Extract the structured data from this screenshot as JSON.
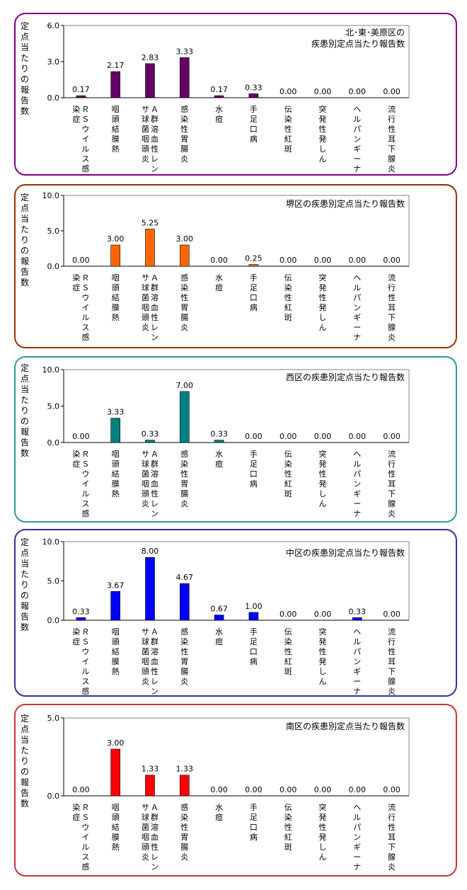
{
  "chart_data": [
    {
      "type": "bar",
      "title": "北･東･美原区の\n疾患別定点当たり報告数",
      "ylabel": "定点当たりの報告数",
      "ylim": [
        0,
        6.0
      ],
      "yticks": [
        "0.0",
        "3.0",
        "6.0"
      ],
      "yticks_values": [
        0,
        3,
        6
      ],
      "color": "#660066",
      "border_color": "#800080",
      "categories": [
        "ＲＳウイルス感染症",
        "咽頭結膜熱",
        "Ａ群溶血性レンサ球菌咽頭炎",
        "感染性胃腸炎",
        "水痘",
        "手足口病",
        "伝染性紅斑",
        "突発性発しん",
        "ヘルパンギーナ",
        "流行性耳下腺炎"
      ],
      "values": [
        0.17,
        2.17,
        2.83,
        3.33,
        0.17,
        0.33,
        0.0,
        0.0,
        0.0,
        0.0
      ],
      "value_labels": [
        "0.17",
        "2.17",
        "2.83",
        "3.33",
        "0.17",
        "0.33",
        "0.00",
        "0.00",
        "0.00",
        "0.00"
      ]
    },
    {
      "type": "bar",
      "title": "堺区の疾患別定点当たり報告数",
      "ylabel": "定点当たりの報告数",
      "ylim": [
        0,
        10.0
      ],
      "yticks": [
        "0.0",
        "5.0",
        "10.0"
      ],
      "yticks_values": [
        0,
        5,
        10
      ],
      "color": "#ff6600",
      "border_color": "#993300",
      "categories": [
        "ＲＳウイルス感染症",
        "咽頭結膜熱",
        "Ａ群溶血性レンサ球菌咽頭炎",
        "感染性胃腸炎",
        "水痘",
        "手足口病",
        "伝染性紅斑",
        "突発性発しん",
        "ヘルパンギーナ",
        "流行性耳下腺炎"
      ],
      "values": [
        0.0,
        3.0,
        5.25,
        3.0,
        0.0,
        0.25,
        0.0,
        0.0,
        0.0,
        0.0
      ],
      "value_labels": [
        "0.00",
        "3.00",
        "5.25",
        "3.00",
        "0.00",
        "0.25",
        "0.00",
        "0.00",
        "0.00",
        "0.00"
      ]
    },
    {
      "type": "bar",
      "title": "西区の疾患別定点当たり報告数",
      "ylabel": "定点当たりの報告数",
      "ylim": [
        0,
        10.0
      ],
      "yticks": [
        "0.0",
        "5.0",
        "10.0"
      ],
      "yticks_values": [
        0,
        5,
        10
      ],
      "color": "#008080",
      "border_color": "#339999",
      "categories": [
        "ＲＳウイルス感染症",
        "咽頭結膜熱",
        "Ａ群溶血性レンサ球菌咽頭炎",
        "感染性胃腸炎",
        "水痘",
        "手足口病",
        "伝染性紅斑",
        "突発性発しん",
        "ヘルパンギーナ",
        "流行性耳下腺炎"
      ],
      "values": [
        0.0,
        3.33,
        0.33,
        7.0,
        0.33,
        0.0,
        0.0,
        0.0,
        0.0,
        0.0
      ],
      "value_labels": [
        "0.00",
        "3.33",
        "0.33",
        "7.00",
        "0.33",
        "0.00",
        "0.00",
        "0.00",
        "0.00",
        "0.00"
      ]
    },
    {
      "type": "bar",
      "title": "中区の疾患別定点当たり報告数",
      "ylabel": "定点当たりの報告数",
      "ylim": [
        0,
        10.0
      ],
      "yticks": [
        "0.0",
        "5.0",
        "10.0"
      ],
      "yticks_values": [
        0,
        5,
        10
      ],
      "color": "#0000ff",
      "border_color": "#333399",
      "categories": [
        "ＲＳウイルス感染症",
        "咽頭結膜熱",
        "Ａ群溶血性レンサ球菌咽頭炎",
        "感染性胃腸炎",
        "水痘",
        "手足口病",
        "伝染性紅斑",
        "突発性発しん",
        "ヘルパンギーナ",
        "流行性耳下腺炎"
      ],
      "values": [
        0.33,
        3.67,
        8.0,
        4.67,
        0.67,
        1.0,
        0.0,
        0.0,
        0.33,
        0.0
      ],
      "value_labels": [
        "0.33",
        "3.67",
        "8.00",
        "4.67",
        "0.67",
        "1.00",
        "0.00",
        "0.00",
        "0.33",
        "0.00"
      ]
    },
    {
      "type": "bar",
      "title": "南区の疾患別定点当たり報告数",
      "ylabel": "定点当たりの報告数",
      "ylim": [
        0,
        5.0
      ],
      "yticks": [
        "0.0",
        "5.0"
      ],
      "yticks_values": [
        0,
        5
      ],
      "color": "#ff0000",
      "border_color": "#cc3333",
      "categories": [
        "ＲＳウイルス感染症",
        "咽頭結膜熱",
        "Ａ群溶血性レンサ球菌咽頭炎",
        "感染性胃腸炎",
        "水痘",
        "手足口病",
        "伝染性紅斑",
        "突発性発しん",
        "ヘルパンギーナ",
        "流行性耳下腺炎"
      ],
      "values": [
        0.0,
        3.0,
        1.33,
        1.33,
        0.0,
        0.0,
        0.0,
        0.0,
        0.0,
        0.0
      ],
      "value_labels": [
        "0.00",
        "3.00",
        "1.33",
        "1.33",
        "0.00",
        "0.00",
        "0.00",
        "0.00",
        "0.00",
        "0.00"
      ]
    }
  ]
}
